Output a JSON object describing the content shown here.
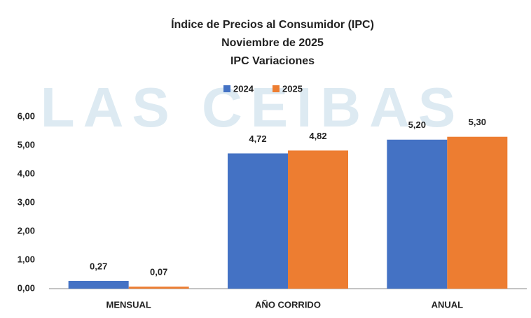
{
  "chart_data": {
    "type": "bar",
    "title": [
      "Índice de Precios al Consumidor (IPC)",
      "Noviembre de 2025",
      "IPC Variaciones"
    ],
    "watermark": "LAS CEIBAS",
    "categories": [
      "MENSUAL",
      "AÑO CORRIDO",
      "ANUAL"
    ],
    "series": [
      {
        "name": "2024",
        "color": "#4472c4",
        "values": [
          0.27,
          4.72,
          5.2
        ],
        "value_labels": [
          "0,27",
          "4,72",
          "5,20"
        ]
      },
      {
        "name": "2025",
        "color": "#ed7d31",
        "values": [
          0.07,
          4.82,
          5.3
        ],
        "value_labels": [
          "0,07",
          "4,82",
          "5,30"
        ]
      }
    ],
    "ylim": [
      0,
      6
    ],
    "yticks": [
      {
        "value": 0,
        "label": "0,00"
      },
      {
        "value": 1,
        "label": "1,00"
      },
      {
        "value": 2,
        "label": "2,00"
      },
      {
        "value": 3,
        "label": "3,00"
      },
      {
        "value": 4,
        "label": "4,00"
      },
      {
        "value": 5,
        "label": "5,00"
      },
      {
        "value": 6,
        "label": "6,00"
      }
    ],
    "grid": false,
    "legend": "top"
  }
}
